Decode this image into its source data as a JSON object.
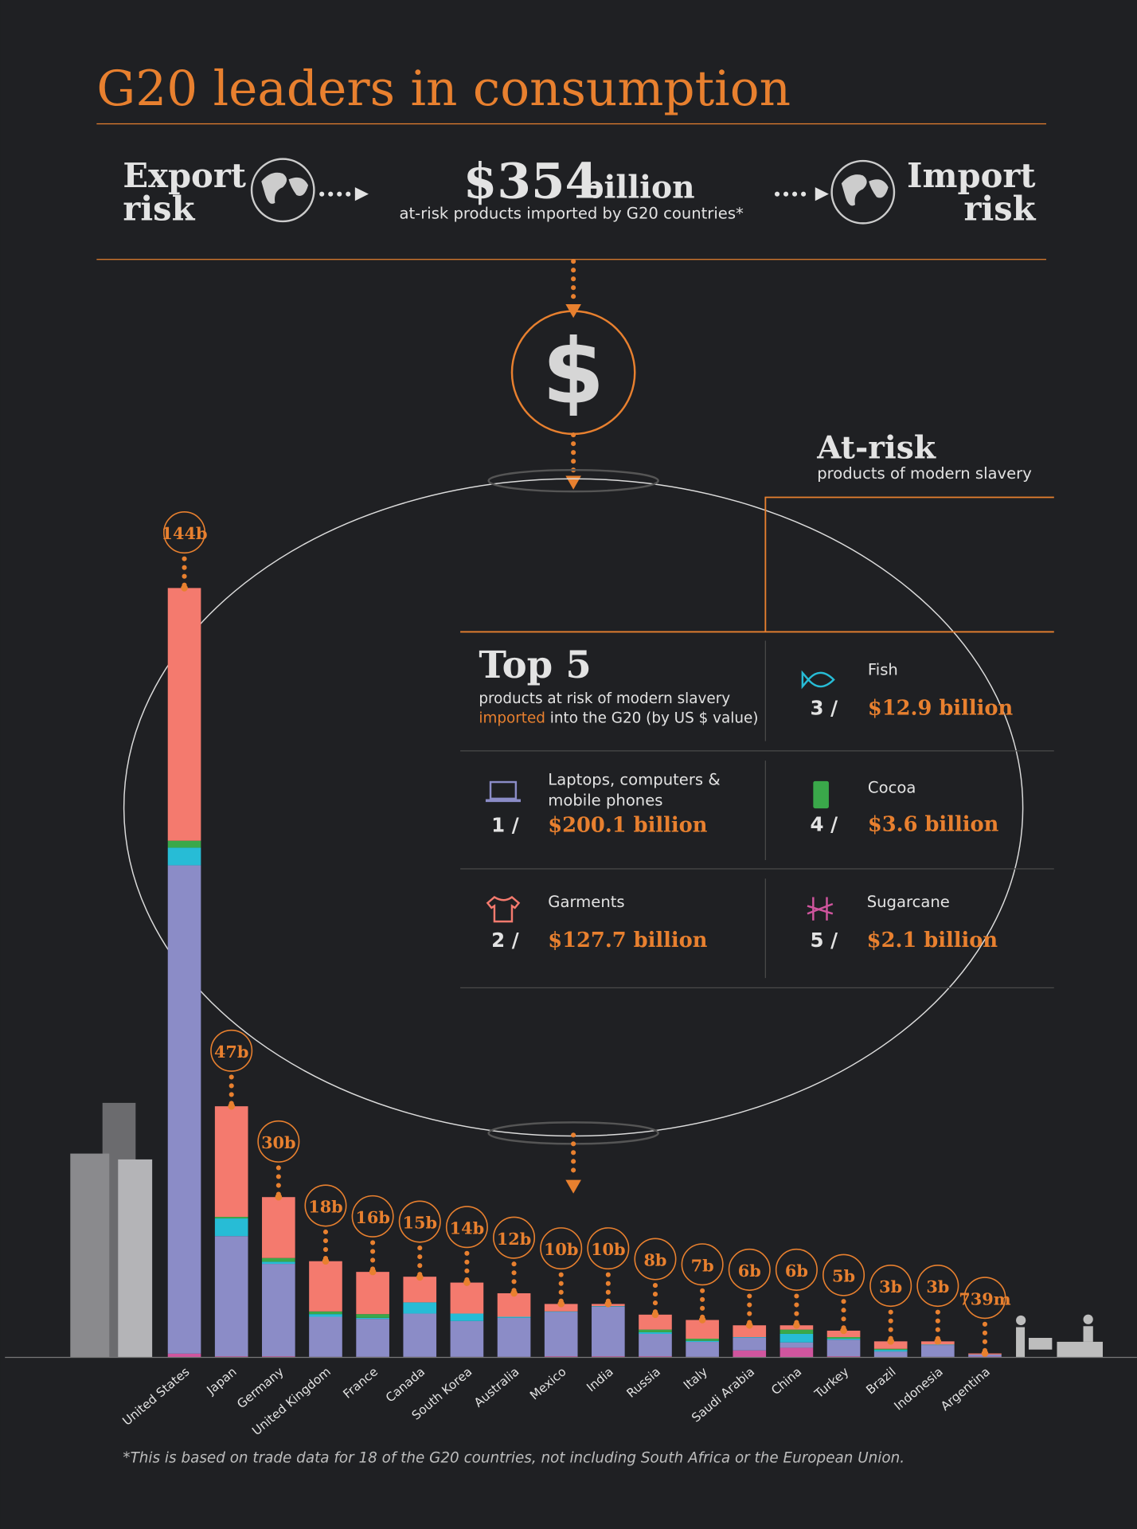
{
  "header": {
    "title": "G20 leaders in consumption",
    "export_risk": [
      "Export",
      "risk"
    ],
    "import_risk": [
      "Import",
      "risk"
    ],
    "amount": "$354",
    "unit": "billion",
    "caption": "at-risk products imported by G20 countries*"
  },
  "dollar_icon": "$",
  "at_risk": {
    "title": "At-risk",
    "subtitle": "products of modern slavery"
  },
  "top5": {
    "title": "Top 5",
    "subtitle_line1": "products at risk of modern slavery",
    "subtitle_highlight": "imported",
    "subtitle_rest": "into the G20 (by US $ value)",
    "items": [
      {
        "rank": "5 /",
        "amount": "$2.1 billion"
      },
      {
        "rank": "1 /",
        "amount": "$200.1 billion"
      },
      {
        "rank": "3 /",
        "amount": "$12.9 billion"
      },
      {
        "rank": "4 /",
        "amount": "$3.6 billion"
      },
      {
        "rank": "2 /",
        "amount": "$127.7 billion"
      }
    ]
  },
  "footnote": "*This is based on trade data for 18 of the G20 countries, not including South Africa or the European Union.",
  "chart_data": {
    "type": "bar",
    "stacked": true,
    "categories": [
      "United States",
      "Japan",
      "Germany",
      "United Kingdom",
      "France",
      "Canada",
      "South Korea",
      "Australia",
      "Mexico",
      "India",
      "Russia",
      "Italy",
      "Saudi Arabia",
      "China",
      "Turkey",
      "Brazil",
      "Indonesia",
      "Argentina"
    ],
    "series": [
      {
        "name": "Sugarcane",
        "color": "#d0559e",
        "values": [
          0.7,
          0.2,
          0.2,
          0.1,
          0.1,
          0.1,
          0.1,
          0.1,
          0.2,
          0.2,
          0.2,
          0.1,
          1.3,
          1.8,
          0.2,
          0,
          0.1,
          0.139
        ]
      },
      {
        "name": "Laptops, computers & mobile phones",
        "color": "#8b8cc7",
        "values": [
          91.4,
          22.5,
          17.3,
          7.5,
          7.1,
          8.1,
          6.7,
          7.3,
          8.3,
          9.3,
          4.2,
          2.8,
          2.4,
          1.0,
          3.1,
          1.1,
          2.2,
          0.4
        ]
      },
      {
        "name": "Fish",
        "color": "#27bcd6",
        "values": [
          3.3,
          3.3,
          0.4,
          0.5,
          0.2,
          2.1,
          1.4,
          0.2,
          0.1,
          0.1,
          0.3,
          0.2,
          0.1,
          1.6,
          0.2,
          0.3,
          0.1,
          0
        ]
      },
      {
        "name": "Cocoa",
        "color": "#3aa84a",
        "values": [
          1.3,
          0.3,
          0.7,
          0.5,
          0.7,
          0,
          0,
          0,
          0,
          0,
          0.5,
          0.4,
          0,
          0.8,
          0.3,
          0.2,
          0,
          0
        ]
      },
      {
        "name": "Garments",
        "color": "#f47a6e",
        "values": [
          47.3,
          20.7,
          11.4,
          9.4,
          7.9,
          4.8,
          5.8,
          4.4,
          1.4,
          0.4,
          2.8,
          3.5,
          2.2,
          0.8,
          1.2,
          1.4,
          0.6,
          0.2
        ]
      }
    ],
    "totals": [
      144,
      47,
      30,
      18,
      16,
      15,
      14,
      12,
      10,
      10,
      8,
      7,
      6,
      6,
      5,
      3,
      3,
      0.739
    ],
    "total_labels": [
      "144b",
      "47b",
      "30b",
      "18b",
      "16b",
      "15b",
      "14b",
      "12b",
      "10b",
      "10b",
      "8b",
      "7b",
      "6b",
      "6b",
      "5b",
      "3b",
      "3b",
      "739m"
    ]
  }
}
